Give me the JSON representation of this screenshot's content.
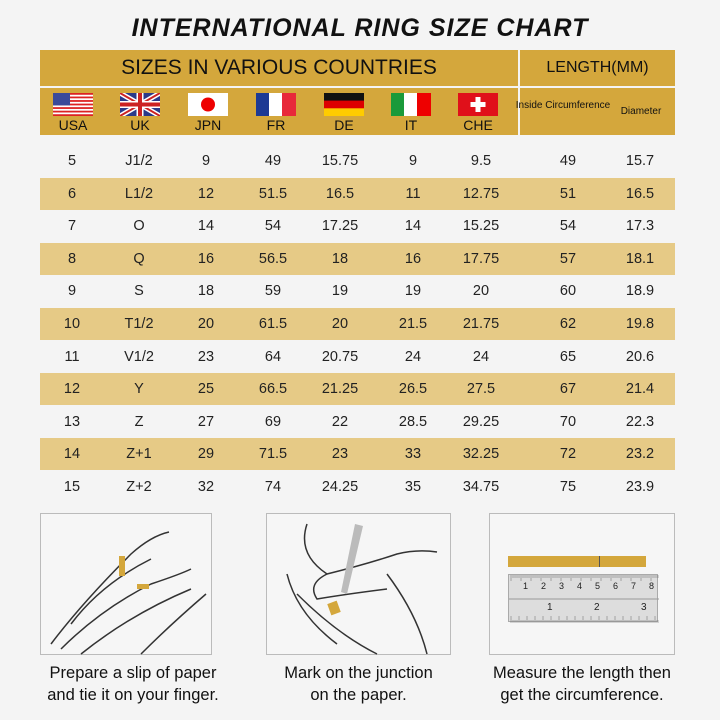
{
  "title": "INTERNATIONAL RING SIZE CHART",
  "header": {
    "countries_title": "SIZES IN VARIOUS COUNTRIES",
    "length_title": "LENGTH(MM)",
    "countries": [
      {
        "code": "USA",
        "flag": "us-flag"
      },
      {
        "code": "UK",
        "flag": "uk-flag"
      },
      {
        "code": "JPN",
        "flag": "japan-flag"
      },
      {
        "code": "FR",
        "flag": "france-flag"
      },
      {
        "code": "DE",
        "flag": "germany-flag"
      },
      {
        "code": "IT",
        "flag": "italy-flag"
      },
      {
        "code": "CHE",
        "flag": "switzerland-flag"
      }
    ],
    "length_cols": [
      "Inside Circumference",
      "Diameter"
    ]
  },
  "colors": {
    "header": "#d4a73c",
    "stripe": "#e6ca86"
  },
  "rows": [
    [
      "5",
      "J1/2",
      "9",
      "49",
      "15.75",
      "9",
      "9.5",
      "49",
      "15.7"
    ],
    [
      "6",
      "L1/2",
      "12",
      "51.5",
      "16.5",
      "11",
      "12.75",
      "51",
      "16.5"
    ],
    [
      "7",
      "O",
      "14",
      "54",
      "17.25",
      "14",
      "15.25",
      "54",
      "17.3"
    ],
    [
      "8",
      "Q",
      "16",
      "56.5",
      "18",
      "16",
      "17.75",
      "57",
      "18.1"
    ],
    [
      "9",
      "S",
      "18",
      "59",
      "19",
      "19",
      "20",
      "60",
      "18.9"
    ],
    [
      "10",
      "T1/2",
      "20",
      "61.5",
      "20",
      "21.5",
      "21.75",
      "62",
      "19.8"
    ],
    [
      "11",
      "V1/2",
      "23",
      "64",
      "20.75",
      "24",
      "24",
      "65",
      "20.6"
    ],
    [
      "12",
      "Y",
      "25",
      "66.5",
      "21.25",
      "26.5",
      "27.5",
      "67",
      "21.4"
    ],
    [
      "13",
      "Z",
      "27",
      "69",
      "22",
      "28.5",
      "29.25",
      "70",
      "22.3"
    ],
    [
      "14",
      "Z+1",
      "29",
      "71.5",
      "23",
      "33",
      "32.25",
      "72",
      "23.2"
    ],
    [
      "15",
      "Z+2",
      "32",
      "74",
      "24.25",
      "35",
      "34.75",
      "75",
      "23.9"
    ]
  ],
  "steps": [
    {
      "line1": "Prepare a slip of paper",
      "line2": "and tie it on your finger."
    },
    {
      "line1": "Mark on the junction",
      "line2": "on the paper."
    },
    {
      "line1": "Measure the length then",
      "line2": "get the circumference."
    }
  ],
  "ruler": {
    "top": [
      "1",
      "2",
      "3",
      "4",
      "5",
      "6",
      "7",
      "8"
    ],
    "bottom": [
      "1",
      "2",
      "3"
    ]
  }
}
